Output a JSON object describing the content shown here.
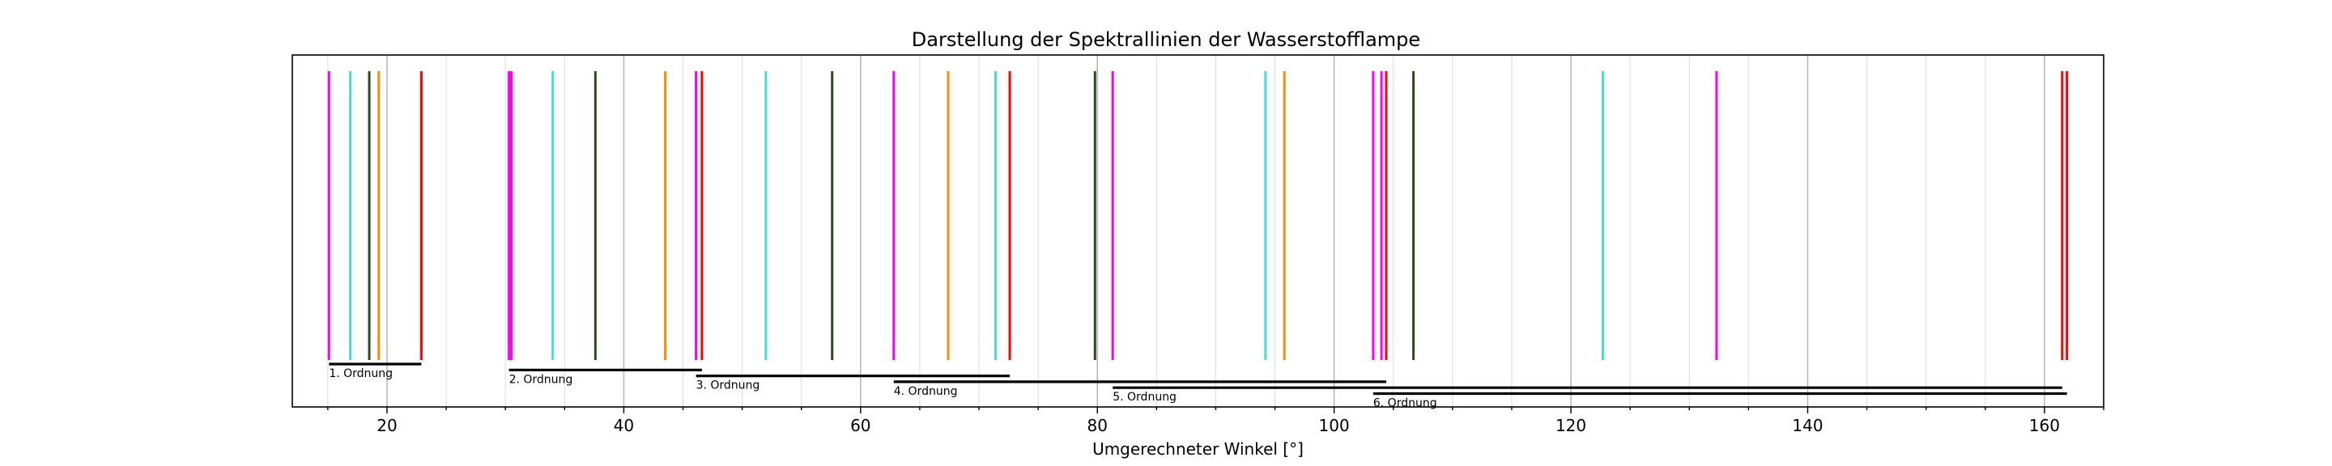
{
  "chart_data": {
    "type": "spectral-lines",
    "title": "Darstellung der Spektrallinien der Wasserstofflampe",
    "xlabel": "Umgerechneter Winkel [°]",
    "ylabel": "",
    "xlim": [
      12,
      165
    ],
    "grid": "vertical-major-and-minor",
    "xticks": [
      20,
      40,
      60,
      80,
      100,
      120,
      140,
      160
    ],
    "xtick_labels": [
      "20",
      "40",
      "60",
      "80",
      "100",
      "120",
      "140",
      "160"
    ],
    "colors": {
      "magenta": "#ff00ff",
      "turquoise": "#40e0d0",
      "darkgreen": "#2d4a1e",
      "orange": "#ff8c00",
      "red": "#ff0000"
    },
    "lines": [
      {
        "x": 15.1,
        "color": "magenta"
      },
      {
        "x": 16.9,
        "color": "turquoise"
      },
      {
        "x": 18.5,
        "color": "darkgreen"
      },
      {
        "x": 19.3,
        "color": "orange"
      },
      {
        "x": 22.9,
        "color": "red"
      },
      {
        "x": 30.3,
        "color": "magenta"
      },
      {
        "x": 30.5,
        "color": "magenta"
      },
      {
        "x": 34.0,
        "color": "turquoise"
      },
      {
        "x": 37.6,
        "color": "darkgreen"
      },
      {
        "x": 43.5,
        "color": "orange"
      },
      {
        "x": 46.1,
        "color": "magenta"
      },
      {
        "x": 46.6,
        "color": "red"
      },
      {
        "x": 52.0,
        "color": "turquoise"
      },
      {
        "x": 57.6,
        "color": "darkgreen"
      },
      {
        "x": 62.8,
        "color": "magenta"
      },
      {
        "x": 67.4,
        "color": "orange"
      },
      {
        "x": 71.4,
        "color": "turquoise"
      },
      {
        "x": 72.6,
        "color": "red"
      },
      {
        "x": 79.8,
        "color": "darkgreen"
      },
      {
        "x": 81.3,
        "color": "magenta"
      },
      {
        "x": 94.2,
        "color": "turquoise"
      },
      {
        "x": 95.8,
        "color": "orange"
      },
      {
        "x": 103.3,
        "color": "magenta"
      },
      {
        "x": 104.0,
        "color": "magenta"
      },
      {
        "x": 104.4,
        "color": "red"
      },
      {
        "x": 106.7,
        "color": "darkgreen"
      },
      {
        "x": 122.7,
        "color": "turquoise"
      },
      {
        "x": 132.3,
        "color": "magenta"
      },
      {
        "x": 161.5,
        "color": "red"
      },
      {
        "x": 161.9,
        "color": "red"
      }
    ],
    "orders": [
      {
        "label": "1. Ordnung",
        "x_start": 15.1,
        "x_end": 22.9
      },
      {
        "label": "2. Ordnung",
        "x_start": 30.3,
        "x_end": 46.6
      },
      {
        "label": "3. Ordnung",
        "x_start": 46.1,
        "x_end": 72.6
      },
      {
        "label": "4. Ordnung",
        "x_start": 62.8,
        "x_end": 104.4
      },
      {
        "label": "5. Ordnung",
        "x_start": 81.3,
        "x_end": 161.5
      },
      {
        "label": "6. Ordnung",
        "x_start": 103.3,
        "x_end": 161.9
      }
    ]
  }
}
